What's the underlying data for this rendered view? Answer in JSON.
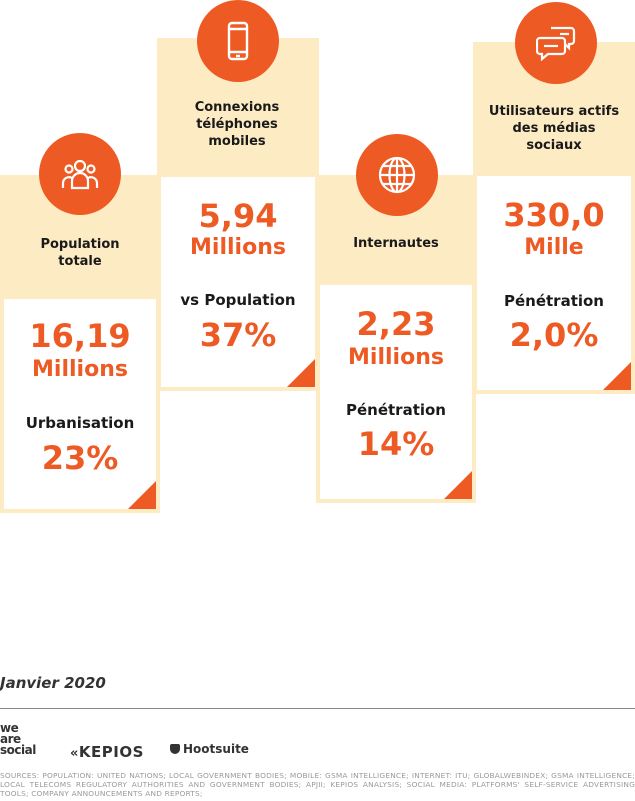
{
  "stats": [
    {
      "label": "Population totale",
      "value": "16,19",
      "unit": "Millions",
      "sub_label": "Urbanisation",
      "sub_value": "23%",
      "icon": "people-icon"
    },
    {
      "label": "Connexions téléphones mobiles",
      "value": "5,94",
      "unit": "Millions",
      "sub_label": "vs Population",
      "sub_value": "37%",
      "icon": "smartphone-icon"
    },
    {
      "label": "Internautes",
      "value": "2,23",
      "unit": "Millions",
      "sub_label": "Pénétration",
      "sub_value": "14%",
      "icon": "globe-icon"
    },
    {
      "label": "Utilisateurs actifs des médias sociaux",
      "value": "330,0",
      "unit": "Mille",
      "sub_label": "Pénétration",
      "sub_value": "2,0%",
      "icon": "chat-bubbles-icon"
    }
  ],
  "footer": {
    "date": "Janvier 2020",
    "logos": {
      "we_are_social_1": "we",
      "we_are_social_2": "are",
      "we_are_social_3": "social",
      "kepios": "KEPIOS",
      "hootsuite": "Hootsuite"
    },
    "sources": "SOURCES: POPULATION: UNITED NATIONS; LOCAL GOVERNMENT BODIES; MOBILE: GSMA INTELLIGENCE; INTERNET: ITU; GLOBALWEBINDEX; GSMA INTELLIGENCE; LOCAL TELECOMS REGULATORY AUTHORITIES AND GOVERNMENT BODIES; APJII; KEPIOS ANALYSIS; SOCIAL MEDIA: PLATFORMS' SELF-SERVICE ADVERTISING TOOLS; COMPANY ANNOUNCEMENTS AND REPORTS;"
  },
  "colors": {
    "accent": "#ee5a24",
    "band": "#fdebc3"
  }
}
